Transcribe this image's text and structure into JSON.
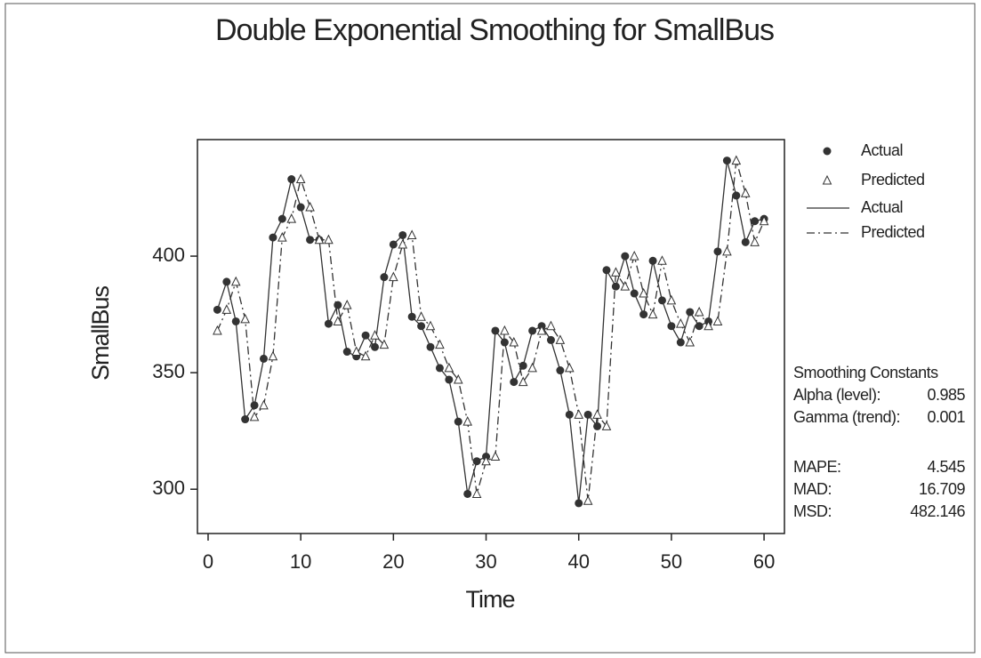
{
  "chart_data": {
    "type": "line",
    "title": "Double Exponential Smoothing for SmallBus",
    "x_label": "Time",
    "y_label": "SmallBus",
    "x": [
      1,
      2,
      3,
      4,
      5,
      6,
      7,
      8,
      9,
      10,
      11,
      12,
      13,
      14,
      15,
      16,
      17,
      18,
      19,
      20,
      21,
      22,
      23,
      24,
      25,
      26,
      27,
      28,
      29,
      30,
      31,
      32,
      33,
      34,
      35,
      36,
      37,
      38,
      39,
      40,
      41,
      42,
      43,
      44,
      45,
      46,
      47,
      48,
      49,
      50,
      51,
      52,
      53,
      54,
      55,
      56,
      57,
      58,
      59,
      60
    ],
    "series": [
      {
        "name": "Actual",
        "color": "#333333",
        "marker": "circle",
        "line_style": "solid",
        "values": [
          377,
          389,
          372,
          330,
          336,
          356,
          408,
          416,
          433,
          421,
          407,
          407,
          371,
          379,
          359,
          357,
          366,
          361,
          391,
          405,
          409,
          374,
          370,
          361,
          352,
          347,
          329,
          298,
          312,
          314,
          368,
          363,
          346,
          353,
          368,
          370,
          364,
          351,
          332,
          294,
          332,
          327,
          394,
          387,
          400,
          384,
          375,
          398,
          381,
          370,
          363,
          376,
          370,
          372,
          402,
          441,
          426,
          406,
          415,
          416
        ]
      },
      {
        "name": "Predicted",
        "color": "#333333",
        "marker": "triangle",
        "line_style": "dashed",
        "values": [
          368,
          377,
          389,
          373,
          331,
          336,
          357,
          408,
          416,
          433,
          421,
          407,
          407,
          372,
          379,
          359,
          357,
          366,
          362,
          391,
          405,
          409,
          374,
          370,
          362,
          352,
          347,
          329,
          298,
          312,
          314,
          368,
          363,
          346,
          352,
          368,
          370,
          364,
          352,
          332,
          295,
          332,
          327,
          393,
          387,
          400,
          384,
          375,
          398,
          381,
          371,
          363,
          376,
          370,
          372,
          402,
          441,
          427,
          406,
          415
        ]
      }
    ],
    "xlim": [
      -1.15,
      62.2
    ],
    "ylim": [
      281,
      450
    ],
    "xticks": [
      0,
      10,
      20,
      30,
      40,
      50,
      60
    ],
    "yticks": [
      300,
      350,
      400
    ],
    "stats_title": "Smoothing Constants",
    "constants": [
      {
        "label": "Alpha (level):",
        "value": 0.985
      },
      {
        "label": "Gamma (trend):",
        "value": 0.001
      }
    ],
    "accuracy": [
      {
        "label": "MAPE:",
        "value": 4.545
      },
      {
        "label": "MAD:",
        "value": 16.709
      },
      {
        "label": "MSD:",
        "value": 482.146
      }
    ]
  }
}
